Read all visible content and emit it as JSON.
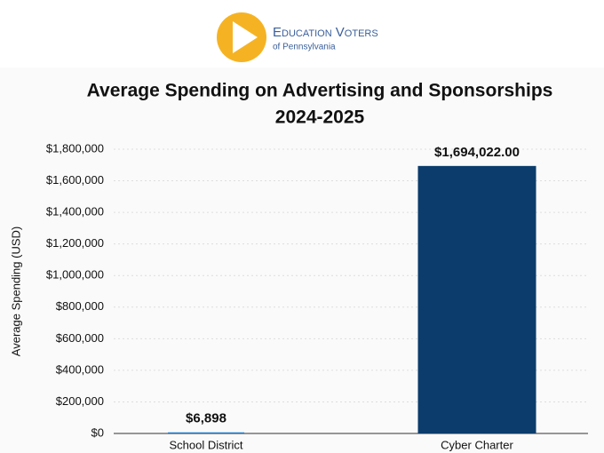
{
  "logo": {
    "name": "Education Voters",
    "subtitle": "of Pennsylvania"
  },
  "chart_data": {
    "type": "bar",
    "title": [
      "Average Spending on Advertising and Sponsorships",
      "2024-2025"
    ],
    "y_label": "Average Spending (USD)",
    "categories": [
      "School District",
      "Cyber Charter"
    ],
    "values": [
      6898,
      1694022
    ],
    "value_labels": [
      "$6,898",
      "$1,694,022.00"
    ],
    "colors": [
      "#1f78c8",
      "#0b3c6b"
    ],
    "ylim": [
      0,
      1800000
    ],
    "yticks": [
      {
        "value": 0,
        "label": "$0"
      },
      {
        "value": 200000,
        "label": "$200,000"
      },
      {
        "value": 400000,
        "label": "$400,000"
      },
      {
        "value": 600000,
        "label": "$600,000"
      },
      {
        "value": 800000,
        "label": "$800,000"
      },
      {
        "value": 1000000,
        "label": "$1,000,000"
      },
      {
        "value": 1200000,
        "label": "$1,200,000"
      },
      {
        "value": 1400000,
        "label": "$1,400,000"
      },
      {
        "value": 1600000,
        "label": "$1,600,000"
      },
      {
        "value": 1800000,
        "label": "$1,800,000"
      }
    ],
    "grid": true
  }
}
